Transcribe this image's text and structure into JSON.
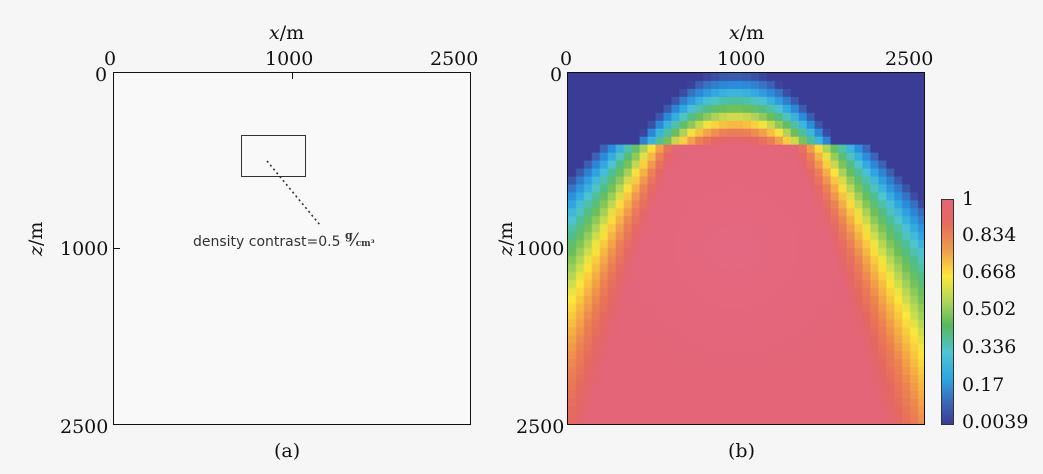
{
  "panel_a": {
    "x_title": "x",
    "x_unit": "/m",
    "z_title": "z",
    "z_unit": "/m",
    "x_ticks": [
      "0",
      "1000",
      "2500"
    ],
    "z_ticks": [
      "0",
      "1000",
      "2500"
    ],
    "annotation_prefix": "density contrast=0.5",
    "annotation_unit_num": "g",
    "annotation_unit_den": "cm³",
    "caption": "(a)"
  },
  "panel_b": {
    "x_title": "x",
    "x_unit": "/m",
    "z_title": "z",
    "z_unit": "/m",
    "x_ticks": [
      "0",
      "1000",
      "2500"
    ],
    "z_ticks": [
      "0",
      "1000",
      "2500"
    ],
    "caption": "(b)",
    "colorbar_labels": [
      "1",
      "0.834",
      "0.668",
      "0.502",
      "0.336",
      "0.17",
      "0.0039"
    ],
    "colors": {
      "c1": "#e36577",
      "c0834": "#ef8f52",
      "c0668": "#fce83a",
      "c0502": "#6cbf5a",
      "c0336": "#4fc4d3",
      "c017": "#2aa6e1",
      "c0": "#3b3c96"
    }
  }
}
